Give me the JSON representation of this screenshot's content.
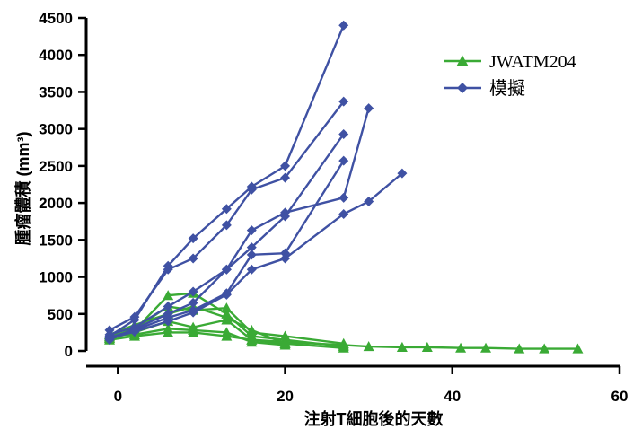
{
  "chart_data": {
    "type": "line",
    "xlabel": "注射T細胞後的天數",
    "ylabel": "腫瘤體積 (mm³)",
    "xlim": [
      -1,
      60
    ],
    "ylim": [
      0,
      4500
    ],
    "xticks": [
      0,
      20,
      40,
      60
    ],
    "yticks": [
      0,
      500,
      1000,
      1500,
      2000,
      2500,
      3000,
      3500,
      4000,
      4500
    ],
    "grid": false,
    "legend_position": "top-right",
    "legend": [
      {
        "label": "JWATM204",
        "color": "#3aaa35",
        "marker": "triangle"
      },
      {
        "label": "模擬",
        "color": "#3f51a3",
        "marker": "diamond"
      }
    ],
    "groups": [
      {
        "label": "JWATM204",
        "color": "#3aaa35",
        "marker": "triangle",
        "lines": [
          {
            "x": [
              -1,
              2,
              6,
              9,
              13,
              16,
              20,
              27,
              30,
              34,
              37,
              41,
              44,
              48,
              51,
              55
            ],
            "y": [
              150,
              200,
              250,
              250,
              200,
              150,
              120,
              80,
              60,
              50,
              50,
              40,
              40,
              30,
              30,
              30
            ]
          },
          {
            "x": [
              -1,
              2,
              6,
              9,
              13,
              16,
              20,
              27
            ],
            "y": [
              200,
              280,
              750,
              780,
              500,
              200,
              150,
              60
            ]
          },
          {
            "x": [
              -1,
              2,
              6,
              9,
              13,
              16,
              20,
              27
            ],
            "y": [
              180,
              300,
              600,
              550,
              580,
              250,
              200,
              100
            ]
          },
          {
            "x": [
              -1,
              2,
              6,
              9,
              13,
              16,
              20
            ],
            "y": [
              170,
              250,
              400,
              320,
              420,
              150,
              100
            ]
          },
          {
            "x": [
              -1,
              2,
              6,
              9,
              13,
              16,
              20
            ],
            "y": [
              200,
              220,
              300,
              280,
              250,
              120,
              80
            ]
          },
          {
            "x": [
              -1,
              2,
              6,
              9,
              13,
              16,
              20,
              27
            ],
            "y": [
              220,
              350,
              500,
              600,
              450,
              280,
              100,
              40
            ]
          }
        ]
      },
      {
        "label": "模擬",
        "color": "#3f51a3",
        "marker": "diamond",
        "lines": [
          {
            "x": [
              -1,
              2,
              6,
              9,
              13,
              16,
              20,
              27
            ],
            "y": [
              200,
              420,
              1150,
              1520,
              1920,
              2220,
              2500,
              4400
            ]
          },
          {
            "x": [
              -1,
              2,
              6,
              9,
              13,
              16,
              20,
              27
            ],
            "y": [
              280,
              460,
              1100,
              1250,
              1700,
              2180,
              2340,
              3370
            ]
          },
          {
            "x": [
              -1,
              2,
              6,
              9,
              13,
              16,
              20,
              27,
              30
            ],
            "y": [
              150,
              300,
              500,
              650,
              1100,
              1630,
              1870,
              2070,
              3280
            ]
          },
          {
            "x": [
              -1,
              2,
              6,
              9,
              13,
              16,
              20,
              27
            ],
            "y": [
              220,
              320,
              600,
              800,
              1100,
              1400,
              1820,
              2930
            ]
          },
          {
            "x": [
              -1,
              2,
              6,
              9,
              13,
              16,
              20,
              27
            ],
            "y": [
              180,
              280,
              450,
              550,
              780,
              1300,
              1320,
              2570
            ]
          },
          {
            "x": [
              -1,
              2,
              6,
              9,
              13,
              16,
              20,
              27,
              30,
              34
            ],
            "y": [
              170,
              260,
              400,
              520,
              760,
              1100,
              1250,
              1850,
              2020,
              2400
            ]
          }
        ]
      }
    ]
  }
}
